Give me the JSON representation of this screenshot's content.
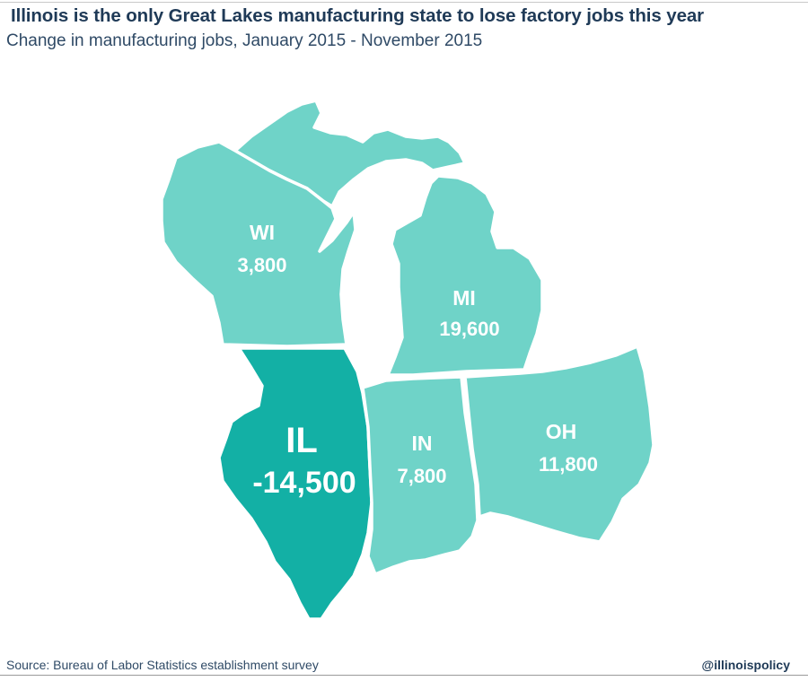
{
  "title": "Illinois is the only Great Lakes manufacturing state to lose factory jobs this year",
  "subtitle": "Change in manufacturing jobs, January 2015 - November 2015",
  "states": {
    "WI": {
      "abbr": "WI",
      "value": "3,800",
      "jobs_change": 3800,
      "color": "#6fd3c8"
    },
    "MI": {
      "abbr": "MI",
      "value": "19,600",
      "jobs_change": 19600,
      "color": "#6fd3c8"
    },
    "IL": {
      "abbr": "IL",
      "value": "-14,500",
      "jobs_change": -14500,
      "color": "#13b0a5"
    },
    "IN": {
      "abbr": "IN",
      "value": "7,800",
      "jobs_change": 7800,
      "color": "#6fd3c8"
    },
    "OH": {
      "abbr": "OH",
      "value": "11,800",
      "jobs_change": 11800,
      "color": "#6fd3c8"
    }
  },
  "footer": {
    "source": "Source: Bureau of Labor Statistics establishment survey",
    "handle": "@illinoispolicy"
  }
}
